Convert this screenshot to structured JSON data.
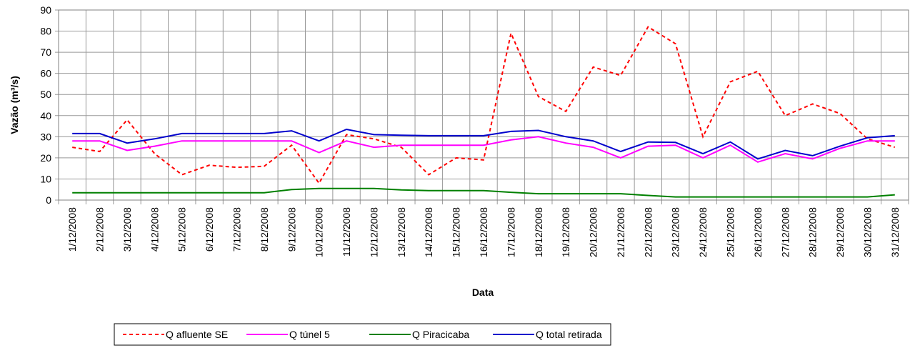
{
  "chart_data": {
    "type": "line",
    "y_label": "Vazão (m³/s)",
    "x_label": "Data",
    "categories": [
      "1/12/2008",
      "2/12/2008",
      "3/12/2008",
      "4/12/2008",
      "5/12/2008",
      "6/12/2008",
      "7/12/2008",
      "8/12/2008",
      "9/12/2008",
      "10/12/2008",
      "11/12/2008",
      "12/12/2008",
      "13/12/2008",
      "14/12/2008",
      "15/12/2008",
      "16/12/2008",
      "17/12/2008",
      "18/12/2008",
      "19/12/2008",
      "20/12/2008",
      "21/12/2008",
      "22/12/2008",
      "23/12/2008",
      "24/12/2008",
      "25/12/2008",
      "26/12/2008",
      "27/12/2008",
      "28/12/2008",
      "29/12/2008",
      "30/12/2008",
      "31/12/2008"
    ],
    "series": [
      {
        "name": "Q afluente SE",
        "color": "#ff0000",
        "dashed": true,
        "values": [
          25,
          23,
          38,
          22,
          12,
          16.5,
          15.5,
          16,
          26,
          8,
          31,
          29,
          25,
          12,
          20,
          19,
          79,
          49,
          42,
          63,
          59,
          82,
          74,
          30,
          56,
          61,
          40,
          45.5,
          41,
          29,
          25
        ]
      },
      {
        "name": "Q túnel 5",
        "color": "#ff00ff",
        "dashed": false,
        "values": [
          28,
          28,
          23.5,
          25.5,
          28,
          28,
          28,
          28,
          28,
          22.5,
          28,
          25,
          26,
          26,
          26,
          26,
          28.5,
          30,
          27,
          25,
          20,
          25.5,
          26,
          20,
          26,
          18,
          22,
          19.5,
          24.5,
          28,
          28
        ]
      },
      {
        "name": "Q Piracicaba",
        "color": "#008000",
        "dashed": false,
        "values": [
          3.5,
          3.5,
          3.5,
          3.5,
          3.5,
          3.5,
          3.5,
          3.5,
          5,
          5.5,
          5.5,
          5.5,
          4.8,
          4.5,
          4.5,
          4.5,
          3.7,
          3,
          3,
          3,
          3,
          2.2,
          1.5,
          1.5,
          1.5,
          1.5,
          1.5,
          1.5,
          1.5,
          1.5,
          2.5
        ]
      },
      {
        "name": "Q total retirada",
        "color": "#0000cc",
        "dashed": false,
        "values": [
          31.5,
          31.5,
          27,
          29,
          31.5,
          31.5,
          31.5,
          31.5,
          32.8,
          28,
          33.5,
          31,
          30.7,
          30.5,
          30.5,
          30.5,
          32.5,
          33,
          30,
          28,
          23,
          27.5,
          27.3,
          22,
          27.5,
          19.5,
          23.5,
          21,
          25.5,
          29.5,
          30.5
        ]
      }
    ],
    "ylim": [
      0,
      90
    ],
    "yticks": [
      0,
      10,
      20,
      30,
      40,
      50,
      60,
      70,
      80,
      90
    ],
    "grid": true
  }
}
